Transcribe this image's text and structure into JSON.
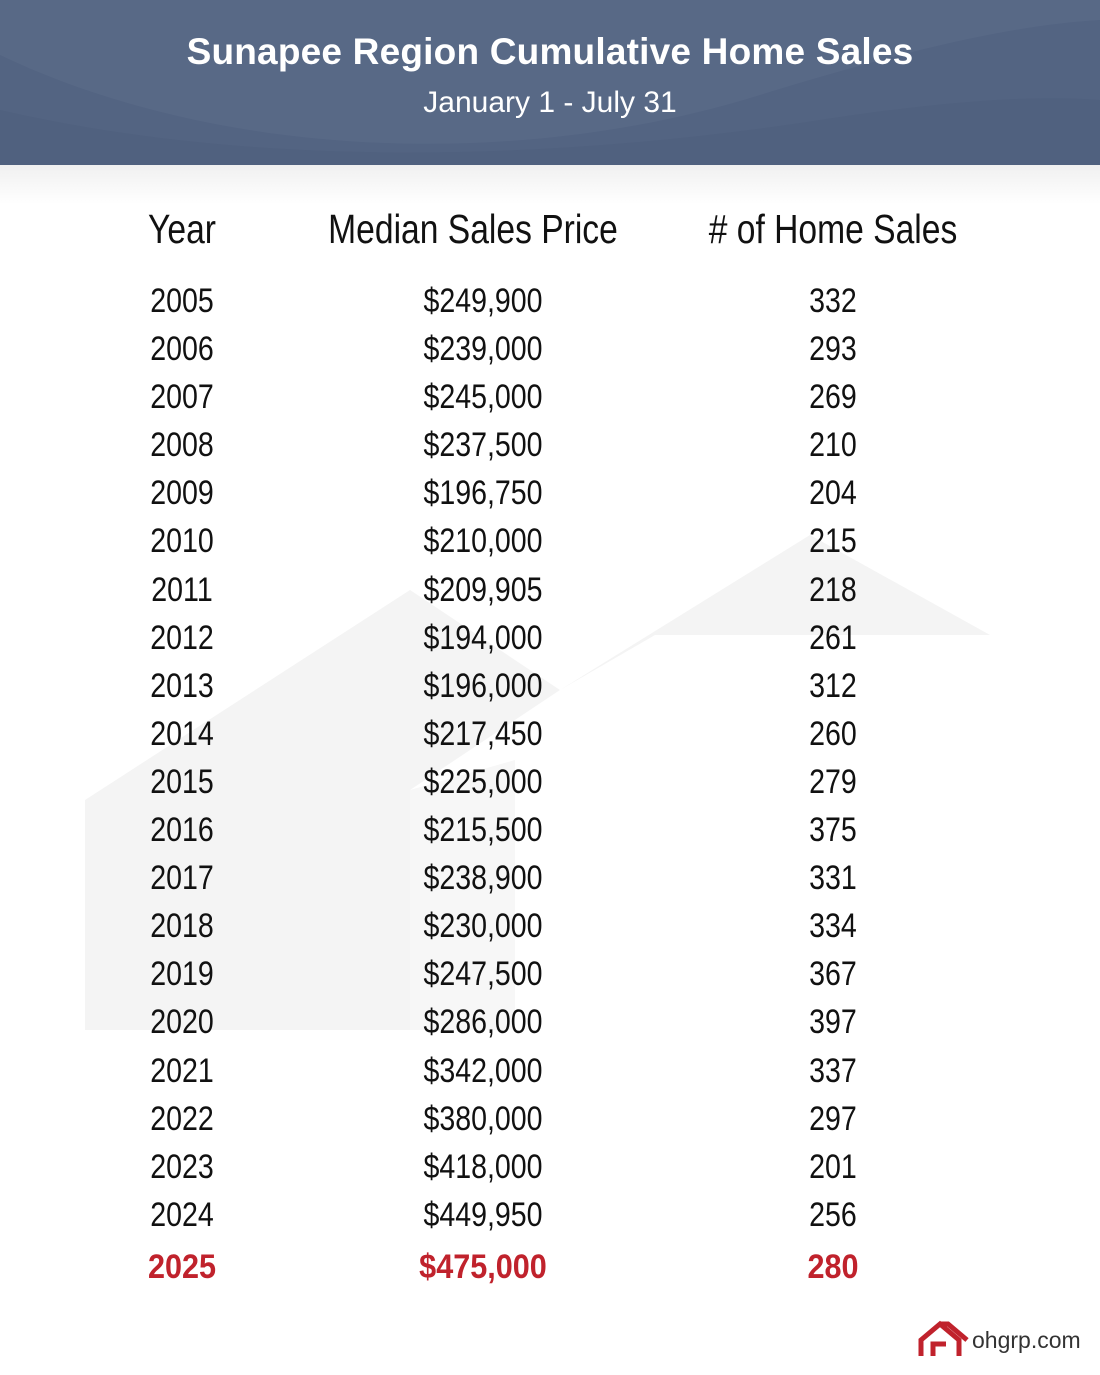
{
  "header": {
    "title": "Sunapee Region Cumulative Home Sales",
    "subtitle": "January 1 - July 31",
    "color": "#536482"
  },
  "table": {
    "headers": {
      "year": "Year",
      "price": "Median Sales Price",
      "sales": "# of Home Sales"
    },
    "rows": [
      {
        "year": "2005",
        "price": "$249,900",
        "sales": "332"
      },
      {
        "year": "2006",
        "price": "$239,000",
        "sales": "293"
      },
      {
        "year": "2007",
        "price": "$245,000",
        "sales": "269"
      },
      {
        "year": "2008",
        "price": "$237,500",
        "sales": "210"
      },
      {
        "year": "2009",
        "price": "$196,750",
        "sales": "204"
      },
      {
        "year": "2010",
        "price": "$210,000",
        "sales": "215"
      },
      {
        "year": "2011",
        "price": "$209,905",
        "sales": "218"
      },
      {
        "year": "2012",
        "price": "$194,000",
        "sales": "261"
      },
      {
        "year": "2013",
        "price": "$196,000",
        "sales": "312"
      },
      {
        "year": "2014",
        "price": "$217,450",
        "sales": "260"
      },
      {
        "year": "2015",
        "price": "$225,000",
        "sales": "279"
      },
      {
        "year": "2016",
        "price": "$215,500",
        "sales": "375"
      },
      {
        "year": "2017",
        "price": "$238,900",
        "sales": "331"
      },
      {
        "year": "2018",
        "price": "$230,000",
        "sales": "334"
      },
      {
        "year": "2019",
        "price": "$247,500",
        "sales": "367"
      },
      {
        "year": "2020",
        "price": "$286,000",
        "sales": "397"
      },
      {
        "year": "2021",
        "price": "$342,000",
        "sales": "337"
      },
      {
        "year": "2022",
        "price": "$380,000",
        "sales": "297"
      },
      {
        "year": "2023",
        "price": "$418,000",
        "sales": "201"
      },
      {
        "year": "2024",
        "price": "$449,950",
        "sales": "256"
      }
    ],
    "highlight_row": {
      "year": "2025",
      "price": "$475,000",
      "sales": "280"
    },
    "highlight_color": "#c0222c"
  },
  "logo": {
    "text": "ohgrp.com",
    "icon": "house-roof-icon",
    "color": "#c0222c"
  }
}
